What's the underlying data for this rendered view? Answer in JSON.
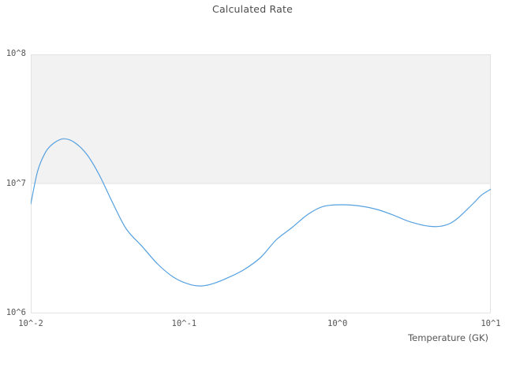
{
  "chart_data": {
    "type": "line",
    "title": "Calculated Rate",
    "xlabel": "Temperature (GK)",
    "ylabel": "",
    "x_scale": "log",
    "y_scale": "log",
    "xlim": [
      0.01,
      10
    ],
    "ylim": [
      1000000,
      100000000
    ],
    "grid": false,
    "legend": "none",
    "x_ticks": [
      {
        "value": 0.01,
        "label": "10^-2"
      },
      {
        "value": 0.1,
        "label": "10^-1"
      },
      {
        "value": 1,
        "label": "10^0"
      },
      {
        "value": 10,
        "label": "10^1"
      }
    ],
    "y_ticks": [
      {
        "value": 100000000,
        "label": "10^8"
      },
      {
        "value": 10000000,
        "label": "10^7"
      },
      {
        "value": 1000000,
        "label": "10^6"
      }
    ],
    "decade_band": {
      "from": 10000000,
      "to": 100000000
    },
    "series": [
      {
        "name": "calculated-rate",
        "x": [
          0.01,
          0.0111,
          0.0125,
          0.0141,
          0.0164,
          0.0194,
          0.0232,
          0.028,
          0.0339,
          0.0419,
          0.0531,
          0.0674,
          0.0855,
          0.108,
          0.13,
          0.155,
          0.196,
          0.249,
          0.315,
          0.399,
          0.505,
          0.64,
          0.81,
          1.09,
          1.46,
          1.85,
          2.35,
          2.97,
          4.0,
          5.06,
          6.05,
          7.71,
          8.71,
          10.0
        ],
        "y": [
          7000000,
          12600000,
          17600000,
          20600000,
          22300000,
          20800000,
          16900000,
          11700000,
          7300000,
          4500000,
          3300000,
          2400000,
          1900000,
          1680000,
          1630000,
          1700000,
          1900000,
          2200000,
          2700000,
          3700000,
          4600000,
          5800000,
          6700000,
          6900000,
          6700000,
          6300000,
          5700000,
          5100000,
          4700000,
          4800000,
          5400000,
          7100000,
          8200000,
          9100000
        ]
      }
    ]
  },
  "colors": {
    "line": "#55a0e0",
    "band_fill": "#f2f2f2",
    "band_stroke": "#e0e0e0",
    "plot_border": "#e3e3e3",
    "title_text": "#4d4d4d",
    "tick_text": "#555555"
  }
}
